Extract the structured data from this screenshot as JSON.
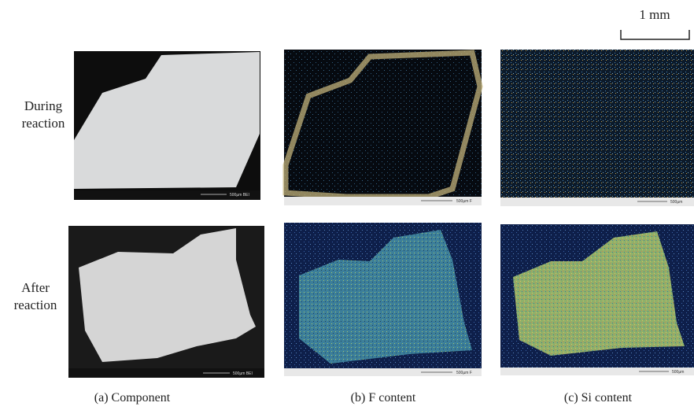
{
  "scale_bar": "1 mm",
  "rows": [
    {
      "label_lines": [
        "During",
        "reaction"
      ]
    },
    {
      "label_lines": [
        "After",
        "reaction"
      ]
    }
  ],
  "columns": [
    {
      "caption": "(a)  Component",
      "micron_bar": "500µm BEI"
    },
    {
      "caption": "(b)  F content",
      "micron_bar": "500µm F"
    },
    {
      "caption": "(c)  Si content",
      "micron_bar": "500µm"
    }
  ]
}
